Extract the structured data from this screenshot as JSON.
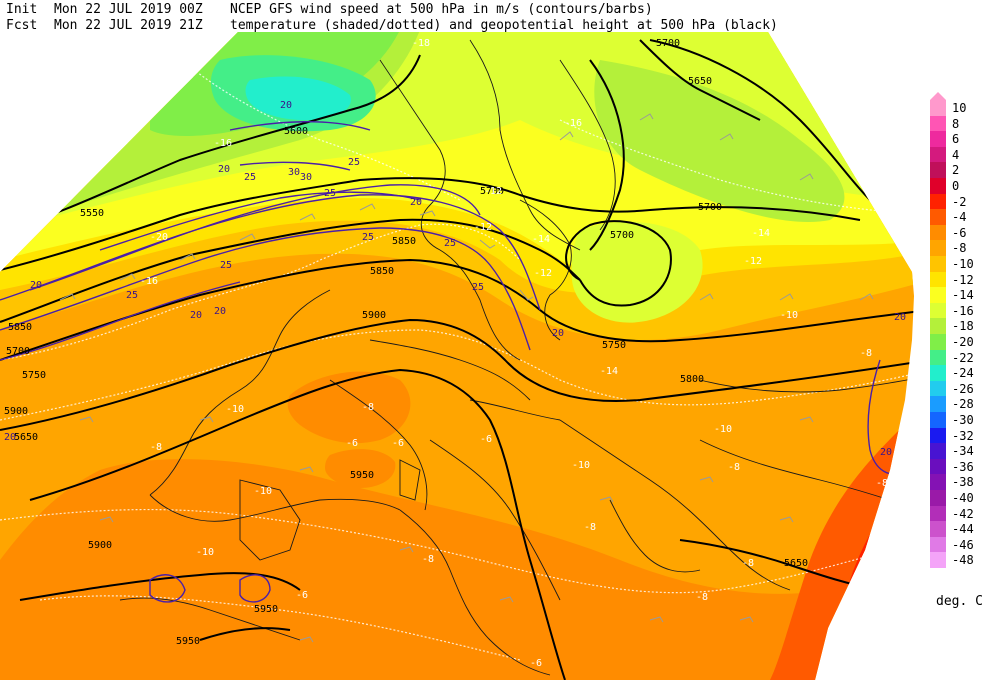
{
  "header": {
    "init_label": "Init",
    "init_time": "Mon 22 JUL 2019 00Z",
    "line1_desc": "NCEP GFS wind speed at 500 hPa in m/s (contours/barbs)",
    "fcst_label": "Fcst",
    "fcst_time": "Mon 22 JUL 2019 21Z",
    "line2_desc": "temperature (shaded/dotted) and geopotential height at 500 hPa (black)"
  },
  "colorbar": {
    "levels": [
      "10",
      "8",
      "6",
      "4",
      "2",
      "0",
      "-2",
      "-4",
      "-6",
      "-8",
      "-10",
      "-12",
      "-14",
      "-16",
      "-18",
      "-20",
      "-22",
      "-24",
      "-26",
      "-28",
      "-30",
      "-32",
      "-34",
      "-36",
      "-38",
      "-40",
      "-42",
      "-44",
      "-46",
      "-48"
    ],
    "colors": [
      "#ff99cc",
      "#ff55b4",
      "#ee2a9e",
      "#d41a7e",
      "#c0105a",
      "#e0002a",
      "#ff2200",
      "#ff5a00",
      "#ff8c00",
      "#ffa500",
      "#ffc400",
      "#ffe400",
      "#fbff20",
      "#ddff33",
      "#b4f03a",
      "#80ee48",
      "#44ee88",
      "#22eecc",
      "#22ccee",
      "#1a9cff",
      "#1466ff",
      "#1a1af0",
      "#4814d2",
      "#6a0ebe",
      "#8412b4",
      "#9a1aa8",
      "#b22eb8",
      "#cc52cc",
      "#e07ae6",
      "#f4a4f8"
    ],
    "units": "deg. C"
  },
  "map": {
    "height_labels": [
      "5550",
      "5600",
      "5650",
      "5700",
      "5700",
      "5700",
      "5700",
      "5700",
      "5750",
      "5750",
      "5800",
      "5850",
      "5900",
      "5900",
      "5900",
      "5950",
      "5950",
      "5950",
      "5850",
      "5650",
      "5650",
      "5850"
    ],
    "wind_labels": [
      "20",
      "25",
      "30",
      "30",
      "25",
      "25",
      "20",
      "25",
      "25",
      "25",
      "20",
      "20",
      "25",
      "20",
      "20",
      "25",
      "20",
      "20",
      "20",
      "20"
    ],
    "temp_labels": [
      "-18",
      "-16",
      "-14",
      "-14",
      "-14",
      "-12",
      "-12",
      "-10",
      "-10",
      "-10",
      "-10",
      "-10",
      "-8",
      "-8",
      "-8",
      "-8",
      "-6",
      "-6",
      "-6",
      "-6",
      "-8",
      "-8",
      "-16",
      "-20",
      "-16",
      "-12",
      "-12",
      "-8",
      "-8",
      "-10",
      "-8",
      "-6"
    ]
  }
}
